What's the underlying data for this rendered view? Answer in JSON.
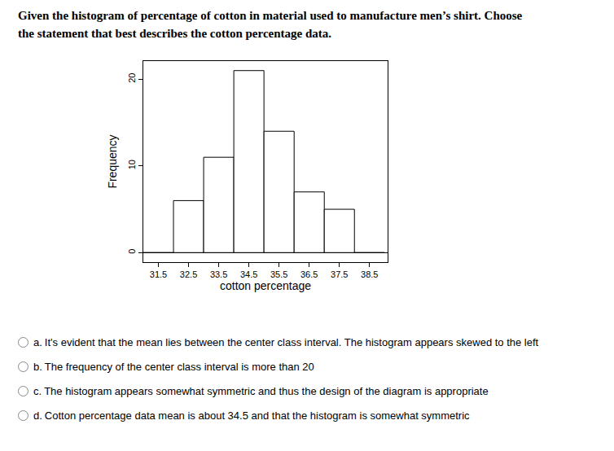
{
  "question": "Given the histogram of percentage of cotton in material used to manufacture men’s shirt. Choose the statement that best describes the cotton percentage data.",
  "chart_data": {
    "type": "histogram",
    "bins": [
      31,
      32,
      33,
      34,
      35,
      36,
      37,
      38,
      39
    ],
    "values": [
      0,
      6,
      11,
      21,
      14,
      7,
      5,
      0
    ],
    "x_label": "cotton percentage",
    "y_label": "Frequency",
    "xlim": [
      31,
      39.1
    ],
    "ylim": [
      -1.1,
      22.1
    ],
    "xticks": [
      31.5,
      32.5,
      33.5,
      34.5,
      35.5,
      36.5,
      37.5,
      38.5
    ],
    "yticks": [
      0,
      10,
      20
    ],
    "color": "#ffffff",
    "grid": false
  },
  "options": [
    {
      "letter": "a.",
      "text": "It's evident that the mean lies between the center class interval. The histogram appears skewed to the left"
    },
    {
      "letter": "b.",
      "text": "The frequency of the center class interval is more than 20"
    },
    {
      "letter": "c.",
      "text": "The histogram appears somewhat symmetric and thus the design of the diagram is appropriate"
    },
    {
      "letter": "d.",
      "text": "Cotton percentage data mean is about 34.5 and that the histogram is somewhat symmetric"
    }
  ]
}
